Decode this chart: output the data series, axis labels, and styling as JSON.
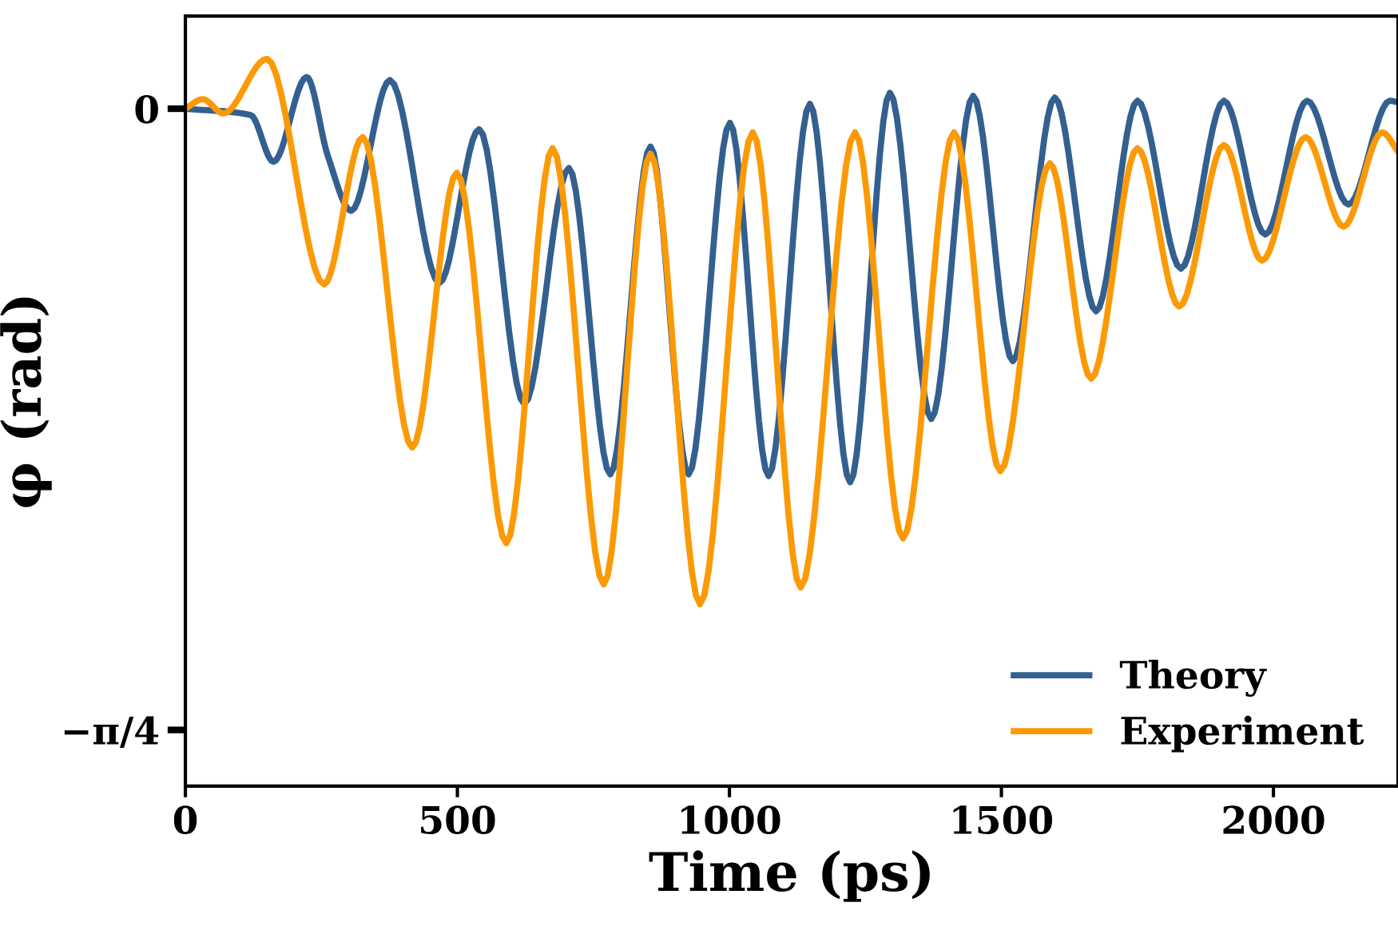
{
  "chart_data": {
    "type": "line",
    "xlabel": "Time (ps)",
    "ylabel": "φ (rad)",
    "xlim": [
      0,
      2229
    ],
    "ylim": [
      -0.856,
      0.117
    ],
    "xticks": [
      0,
      500,
      1000,
      1500,
      2000
    ],
    "yticks": [
      0,
      {
        "value": -0.785,
        "label": "−π/4"
      }
    ],
    "grid": false,
    "legend": "bottom right",
    "marker": "none",
    "line_style": "solid",
    "series": [
      {
        "name": "Theory",
        "color": "#34608f",
        "x": [
          0,
          120,
          162,
          223,
          262,
          305,
          376,
          467,
          540,
          623,
          705,
          781,
          855,
          925,
          1001,
          1072,
          1148,
          1222,
          1295,
          1371,
          1448,
          1521,
          1598,
          1674,
          1750,
          1830,
          1909,
          1985,
          2062,
          2138,
          2214,
          2229
        ],
        "values": [
          0,
          -0.008,
          -0.067,
          0.04,
          -0.06,
          -0.129,
          0.036,
          -0.22,
          -0.026,
          -0.373,
          -0.075,
          -0.462,
          -0.048,
          -0.462,
          -0.018,
          -0.464,
          0.006,
          -0.472,
          0.02,
          -0.392,
          0.016,
          -0.319,
          0.014,
          -0.256,
          0.01,
          -0.202,
          0.01,
          -0.159,
          0.01,
          -0.121,
          0.01,
          0.008
        ]
      },
      {
        "name": "Experiment",
        "color": "#fb9a06",
        "x": [
          0,
          32,
          70,
          150,
          255,
          326,
          417,
          499,
          590,
          675,
          769,
          855,
          946,
          1043,
          1131,
          1231,
          1319,
          1413,
          1498,
          1589,
          1665,
          1750,
          1827,
          1909,
          1979,
          2059,
          2129,
          2200,
          2229
        ],
        "values": [
          0,
          0.012,
          -0.006,
          0.063,
          -0.222,
          -0.036,
          -0.428,
          -0.081,
          -0.549,
          -0.05,
          -0.601,
          -0.057,
          -0.626,
          -0.03,
          -0.605,
          -0.03,
          -0.543,
          -0.03,
          -0.458,
          -0.069,
          -0.341,
          -0.05,
          -0.25,
          -0.046,
          -0.192,
          -0.036,
          -0.149,
          -0.03,
          -0.054
        ]
      }
    ]
  }
}
